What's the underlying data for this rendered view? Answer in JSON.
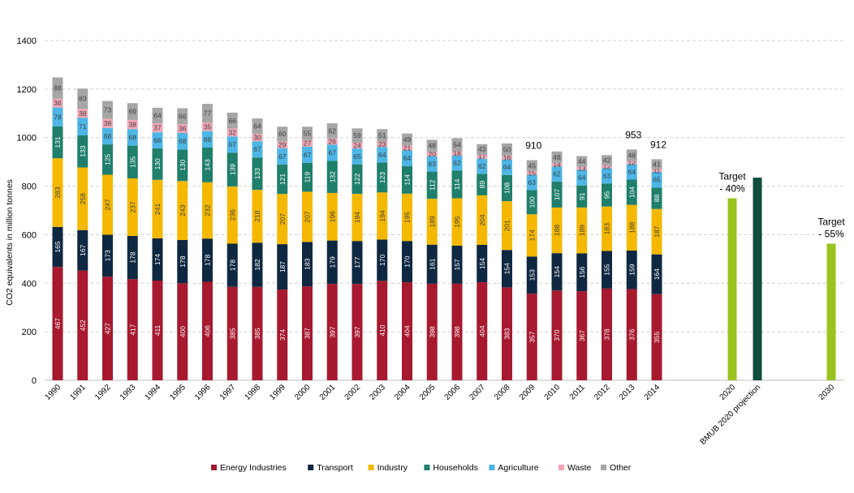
{
  "chart_data": {
    "type": "bar",
    "stacked": true,
    "ylabel": "CO2 equivalents in million tonnes",
    "ylim": [
      0,
      1400
    ],
    "yticks": [
      0,
      200,
      400,
      600,
      800,
      1000,
      1200,
      1400
    ],
    "grid": true,
    "legend_position": "bottom",
    "categories": [
      "1990",
      "1991",
      "1992",
      "1993",
      "1994",
      "1995",
      "1996",
      "1997",
      "1998",
      "1999",
      "2000",
      "2001",
      "2002",
      "2003",
      "2004",
      "2005",
      "2006",
      "2007",
      "2008",
      "2009",
      "2010",
      "2011",
      "2012",
      "2013",
      "2014"
    ],
    "series": [
      {
        "name": "Energy Industries",
        "color": "#A6192E",
        "values": [
          467,
          452,
          427,
          417,
          411,
          400,
          406,
          385,
          385,
          374,
          387,
          397,
          397,
          410,
          404,
          398,
          398,
          404,
          383,
          357,
          370,
          367,
          378,
          376,
          355
        ]
      },
      {
        "name": "Transport",
        "color": "#0E2841",
        "values": [
          165,
          167,
          173,
          178,
          174,
          178,
          178,
          178,
          182,
          187,
          183,
          179,
          177,
          170,
          170,
          161,
          157,
          154,
          154,
          153,
          154,
          156,
          155,
          159,
          164
        ]
      },
      {
        "name": "Industry",
        "color": "#F5B800",
        "values": [
          283,
          258,
          247,
          237,
          241,
          243,
          232,
          236,
          218,
          207,
          207,
          196,
          194,
          194,
          195,
          189,
          195,
          204,
          201,
          174,
          188,
          189,
          183,
          188,
          187
        ]
      },
      {
        "name": "Households",
        "color": "#1F7F6B",
        "values": [
          131,
          133,
          125,
          135,
          130,
          130,
          143,
          139,
          133,
          121,
          119,
          132,
          122,
          123,
          114,
          112,
          114,
          89,
          108,
          100,
          107,
          91,
          95,
          104,
          88
        ]
      },
      {
        "name": "Agriculture",
        "color": "#4DB6E6",
        "values": [
          78,
          71,
          68,
          68,
          66,
          68,
          68,
          67,
          67,
          67,
          67,
          67,
          65,
          64,
          64,
          63,
          62,
          62,
          64,
          63,
          62,
          64,
          63,
          64,
          65
        ]
      },
      {
        "name": "Waste",
        "color": "#F1A7B6",
        "values": [
          36,
          38,
          38,
          38,
          37,
          36,
          35,
          32,
          30,
          29,
          27,
          26,
          24,
          23,
          21,
          20,
          18,
          17,
          16,
          15,
          14,
          13,
          12,
          12,
          11
        ]
      },
      {
        "name": "Other",
        "color": "#A6A6A6",
        "values": [
          88,
          83,
          73,
          69,
          64,
          66,
          77,
          66,
          64,
          60,
          55,
          62,
          59,
          51,
          49,
          48,
          54,
          43,
          50,
          45,
          48,
          44,
          42,
          48,
          41
        ]
      }
    ],
    "totals_labels": [
      {
        "category": "2009",
        "text": "910"
      },
      {
        "category": "2013",
        "text": "953"
      },
      {
        "category": "2014",
        "text": "912"
      }
    ],
    "extra_bars": [
      {
        "label": "2020",
        "value": 750,
        "color": "#9BC31F"
      },
      {
        "label": "BMUB 2020 projection",
        "value": 835,
        "color": "#0F4D3C"
      },
      {
        "label": "2030",
        "value": 563,
        "color": "#9BC31F"
      }
    ],
    "annotations": [
      {
        "for": "2020",
        "lines": [
          "Target",
          "- 40%"
        ]
      },
      {
        "for": "2030",
        "lines": [
          "Target",
          "- 55%"
        ]
      }
    ]
  }
}
